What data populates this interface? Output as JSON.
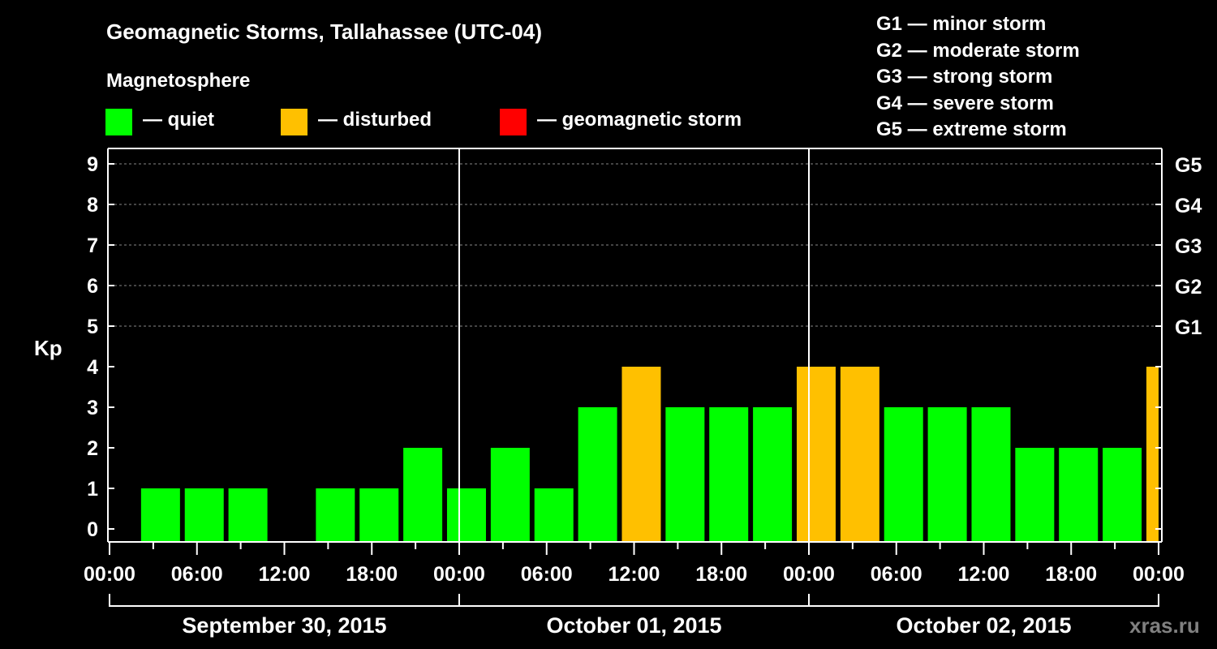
{
  "chart_data": {
    "type": "bar",
    "title": "Geomagnetic Storms, Tallahassee (UTC-04)",
    "ylabel": "Kp",
    "ylim": [
      0,
      9
    ],
    "yticks": [
      "0",
      "1",
      "2",
      "3",
      "4",
      "5",
      "6",
      "7",
      "8",
      "9"
    ],
    "right_ticks": [
      {
        "kp": 5,
        "label": "G1"
      },
      {
        "kp": 6,
        "label": "G2"
      },
      {
        "kp": 7,
        "label": "G3"
      },
      {
        "kp": 8,
        "label": "G4"
      },
      {
        "kp": 9,
        "label": "G5"
      }
    ],
    "xticks": [
      "00:00",
      "06:00",
      "12:00",
      "18:00",
      "00:00",
      "06:00",
      "12:00",
      "18:00",
      "00:00",
      "06:00",
      "12:00",
      "18:00",
      "00:00"
    ],
    "x_range_hours": [
      0,
      72
    ],
    "bar_interval_hours": 3,
    "bar_center_start_hours": 3.5,
    "days": [
      "September 30, 2015",
      "October 01, 2015",
      "October 02, 2015"
    ],
    "values": [
      1,
      1,
      1,
      0,
      1,
      1,
      2,
      1,
      2,
      1,
      3,
      4,
      3,
      3,
      3,
      4,
      4,
      3,
      3,
      3,
      2,
      2,
      2,
      4
    ],
    "status": [
      "quiet",
      "quiet",
      "quiet",
      "quiet",
      "quiet",
      "quiet",
      "quiet",
      "quiet",
      "quiet",
      "quiet",
      "quiet",
      "disturbed",
      "quiet",
      "quiet",
      "quiet",
      "disturbed",
      "disturbed",
      "quiet",
      "quiet",
      "quiet",
      "quiet",
      "quiet",
      "quiet",
      "disturbed"
    ],
    "grid": true
  },
  "colors": {
    "quiet": "#00ff00",
    "disturbed": "#ffc000",
    "storm": "#ff0000"
  },
  "legend": {
    "heading": "Magnetosphere",
    "quiet": "— quiet",
    "disturbed": "— disturbed",
    "storm": "— geomagnetic storm"
  },
  "scale": [
    "G1 — minor storm",
    "G2 — moderate storm",
    "G3 — strong storm",
    "G4 — severe storm",
    "G5 — extreme storm"
  ],
  "watermark": "xras.ru"
}
